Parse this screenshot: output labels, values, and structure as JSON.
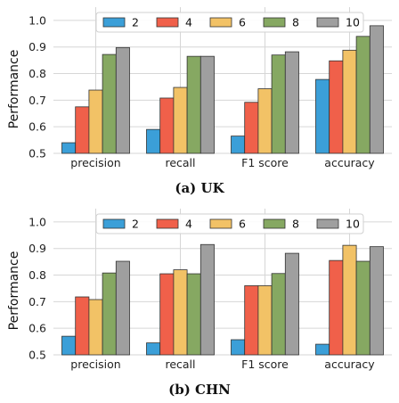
{
  "colors": [
    "#3b9fd8",
    "#f0604a",
    "#f2c266",
    "#86a862",
    "#9f9f9f"
  ],
  "chart_data": [
    {
      "type": "bar",
      "caption": "(a) UK",
      "ylabel": "Performance",
      "ylim": [
        0.5,
        1.05
      ],
      "yticks": [
        "0.5",
        "0.6",
        "0.7",
        "0.8",
        "0.9",
        "1.0"
      ],
      "categories": [
        "precision",
        "recall",
        "F1 score",
        "accuracy"
      ],
      "legend_position": "top-center",
      "grid": true,
      "series": [
        {
          "name": "2",
          "values": [
            0.54,
            0.59,
            0.565,
            0.778
          ]
        },
        {
          "name": "4",
          "values": [
            0.675,
            0.708,
            0.692,
            0.848
          ]
        },
        {
          "name": "6",
          "values": [
            0.738,
            0.748,
            0.743,
            0.888
          ]
        },
        {
          "name": "8",
          "values": [
            0.872,
            0.865,
            0.87,
            0.94
          ]
        },
        {
          "name": "10",
          "values": [
            0.898,
            0.865,
            0.882,
            0.98
          ]
        }
      ]
    },
    {
      "type": "bar",
      "caption": "(b) CHN",
      "ylabel": "Performance",
      "ylim": [
        0.5,
        1.05
      ],
      "yticks": [
        "0.5",
        "0.6",
        "0.7",
        "0.8",
        "0.9",
        "1.0"
      ],
      "categories": [
        "precision",
        "recall",
        "F1 score",
        "accuracy"
      ],
      "legend_position": "top-center",
      "grid": true,
      "series": [
        {
          "name": "2",
          "values": [
            0.57,
            0.545,
            0.557,
            0.54
          ]
        },
        {
          "name": "4",
          "values": [
            0.718,
            0.805,
            0.76,
            0.855
          ]
        },
        {
          "name": "6",
          "values": [
            0.708,
            0.82,
            0.76,
            0.912
          ]
        },
        {
          "name": "8",
          "values": [
            0.808,
            0.805,
            0.806,
            0.852
          ]
        },
        {
          "name": "10",
          "values": [
            0.852,
            0.915,
            0.882,
            0.907
          ]
        }
      ]
    }
  ]
}
